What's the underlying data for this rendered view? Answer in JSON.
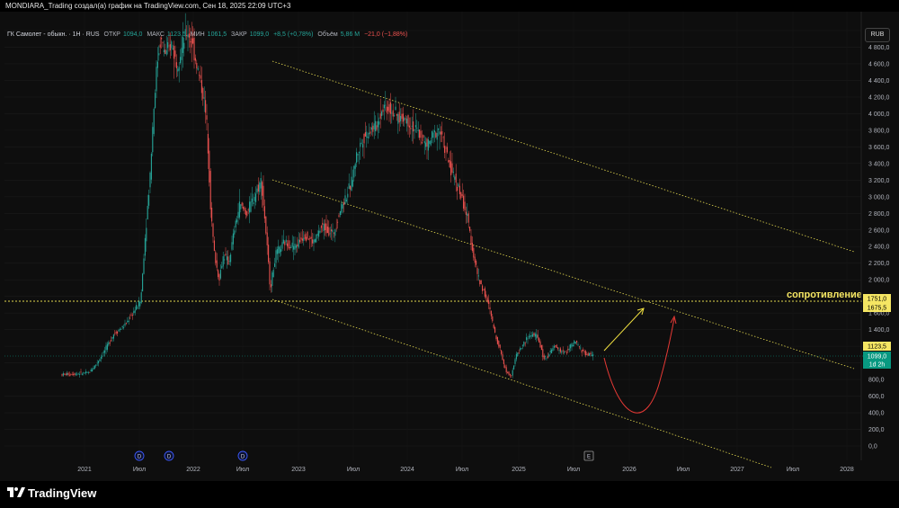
{
  "header": {
    "title": "MONDIARA_Trading создал(а) график на TradingView.com, Сен 18, 2025 22:09 UTC+3"
  },
  "legend": {
    "symbol": "ГК Самолет - обыкн. · 1Н · RUS",
    "open_label": "ОТКР",
    "open_value": "1094,0",
    "high_label": "МАКС",
    "high_value": "1123,5",
    "low_label": "МИН",
    "low_value": "1061,5",
    "close_label": "ЗАКР",
    "close_value": "1099,0",
    "change": "+8,5 (+0,78%)",
    "volume_label": "Объём",
    "volume_value": "5,86 M",
    "volume_change": "−21,0 (−1,88%)"
  },
  "currency": "RUB",
  "annotation": "сопротивление",
  "price_axis": {
    "ticks": [
      "5 000,0",
      "4 800,0",
      "4 600,0",
      "4 400,0",
      "4 200,0",
      "4 000,0",
      "3 800,0",
      "3 600,0",
      "3 400,0",
      "3 200,0",
      "3 000,0",
      "2 800,0",
      "2 600,0",
      "2 400,0",
      "2 200,0",
      "2 000,0",
      "1 800,0",
      "1 600,0",
      "1 400,0",
      "1 200,0",
      "1 000,0",
      "800,0",
      "600,0",
      "400,0",
      "200,0",
      "0,0"
    ],
    "tick_values": [
      5000,
      4800,
      4600,
      4400,
      4200,
      4000,
      3800,
      3600,
      3400,
      3200,
      3000,
      2800,
      2600,
      2400,
      2200,
      2000,
      1800,
      1600,
      1400,
      1200,
      1000,
      800,
      600,
      400,
      200,
      0
    ],
    "markers": [
      {
        "value": "1751,0",
        "color": "#f5e663",
        "text_color": "#000000"
      },
      {
        "value": "1675,5",
        "color": "#f5e663",
        "text_color": "#000000"
      },
      {
        "value": "1123,5",
        "color": "#f5e663",
        "text_color": "#000000"
      },
      {
        "value": "1099,0",
        "color": "#089981",
        "text_color": "#ffffff"
      },
      {
        "value": "1d 2h",
        "color": "#089981",
        "text_color": "#ffffff"
      }
    ]
  },
  "time_axis": {
    "ticks": [
      "2021",
      "Июл",
      "2022",
      "Июл",
      "2023",
      "Июл",
      "2024",
      "Июл",
      "2025",
      "Июл",
      "2026",
      "Июл",
      "2027",
      "Июл",
      "2028"
    ]
  },
  "event_markers": [
    "D",
    "D",
    "D",
    "E"
  ],
  "footer": {
    "logo": "TradingView"
  },
  "colors": {
    "up": "#26a69a",
    "down": "#ef5350",
    "channel": "#e3d84f",
    "projection_up": "#f0e040",
    "projection_down": "#e53935"
  }
}
